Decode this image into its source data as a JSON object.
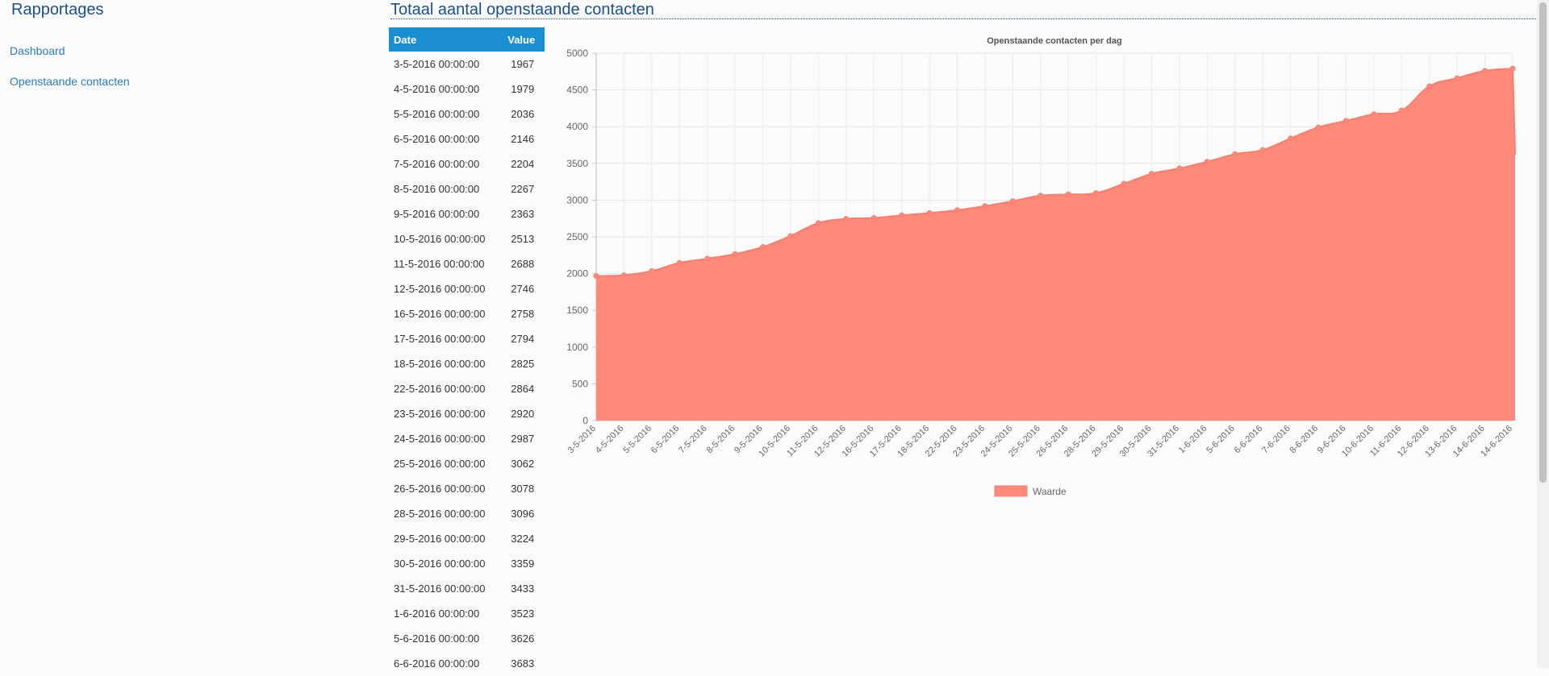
{
  "sidebar": {
    "title": "Rapportages",
    "items": [
      {
        "label": "Dashboard"
      },
      {
        "label": "Openstaande contacten"
      }
    ]
  },
  "main": {
    "title": "Totaal aantal openstaande contacten",
    "table": {
      "headers": [
        "Date",
        "Value"
      ],
      "rows": [
        [
          "3-5-2016 00:00:00",
          "1967"
        ],
        [
          "4-5-2016 00:00:00",
          "1979"
        ],
        [
          "5-5-2016 00:00:00",
          "2036"
        ],
        [
          "6-5-2016 00:00:00",
          "2146"
        ],
        [
          "7-5-2016 00:00:00",
          "2204"
        ],
        [
          "8-5-2016 00:00:00",
          "2267"
        ],
        [
          "9-5-2016 00:00:00",
          "2363"
        ],
        [
          "10-5-2016 00:00:00",
          "2513"
        ],
        [
          "11-5-2016 00:00:00",
          "2688"
        ],
        [
          "12-5-2016 00:00:00",
          "2746"
        ],
        [
          "16-5-2016 00:00:00",
          "2758"
        ],
        [
          "17-5-2016 00:00:00",
          "2794"
        ],
        [
          "18-5-2016 00:00:00",
          "2825"
        ],
        [
          "22-5-2016 00:00:00",
          "2864"
        ],
        [
          "23-5-2016 00:00:00",
          "2920"
        ],
        [
          "24-5-2016 00:00:00",
          "2987"
        ],
        [
          "25-5-2016 00:00:00",
          "3062"
        ],
        [
          "26-5-2016 00:00:00",
          "3078"
        ],
        [
          "28-5-2016 00:00:00",
          "3096"
        ],
        [
          "29-5-2016 00:00:00",
          "3224"
        ],
        [
          "30-5-2016 00:00:00",
          "3359"
        ],
        [
          "31-5-2016 00:00:00",
          "3433"
        ],
        [
          "1-6-2016 00:00:00",
          "3523"
        ],
        [
          "5-6-2016 00:00:00",
          "3626"
        ],
        [
          "6-6-2016 00:00:00",
          "3683"
        ]
      ]
    }
  },
  "chart_data": {
    "type": "area",
    "title": "Openstaande contacten per dag",
    "xlabel": "",
    "ylabel": "",
    "ylim": [
      0,
      5000
    ],
    "yticks": [
      0,
      500,
      1000,
      1500,
      2000,
      2500,
      3000,
      3500,
      4000,
      4500,
      5000
    ],
    "grid": true,
    "legend_position": "bottom",
    "categories": [
      "3-5-2016",
      "4-5-2016",
      "5-5-2016",
      "6-5-2016",
      "7-5-2016",
      "8-5-2016",
      "9-5-2016",
      "10-5-2016",
      "11-5-2016",
      "12-5-2016",
      "16-5-2016",
      "17-5-2016",
      "18-5-2016",
      "22-5-2016",
      "23-5-2016",
      "24-5-2016",
      "25-5-2016",
      "26-5-2016",
      "28-5-2016",
      "29-5-2016",
      "30-5-2016",
      "31-5-2016",
      "1-6-2016",
      "5-6-2016",
      "6-6-2016",
      "7-6-2016",
      "8-6-2016",
      "9-6-2016",
      "10-6-2016",
      "11-6-2016",
      "12-6-2016",
      "13-6-2016",
      "14-6-2016",
      "14-6-2016"
    ],
    "series": [
      {
        "name": "Waarde",
        "color": "#ff8a7a",
        "line_color": "#f08070",
        "values": [
          1967,
          1979,
          2036,
          2146,
          2204,
          2267,
          2363,
          2513,
          2688,
          2746,
          2758,
          2794,
          2825,
          2864,
          2920,
          2987,
          3062,
          3078,
          3096,
          3224,
          3359,
          3433,
          3523,
          3626,
          3683,
          3840,
          3990,
          4080,
          4170,
          4220,
          4550,
          4660,
          4760,
          4790
        ]
      }
    ],
    "tail_value": 3620
  },
  "colors": {
    "title": "#1b4f8a",
    "link": "#2a7ab8",
    "table_header_bg": "#1b8ed2"
  }
}
